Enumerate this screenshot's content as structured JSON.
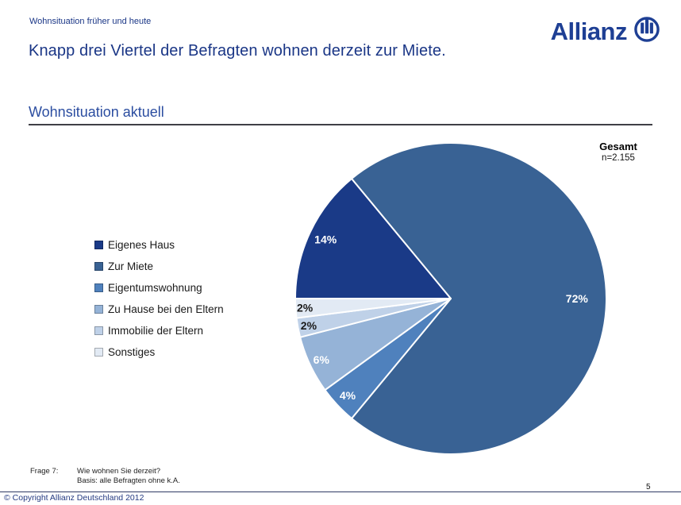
{
  "page": {
    "eyebrow": "Wohnsituation früher und heute",
    "title": "Knapp drei Viertel der Befragten wohnen derzeit zur Miete.",
    "section_title": "Wohnsituation aktuell",
    "copyright": "© Copyright Allianz Deutschland 2012",
    "page_number": "5"
  },
  "logo": {
    "brand": "Allianz"
  },
  "chart_header": {
    "title": "Gesamt",
    "n": "n=2.155"
  },
  "footnote": {
    "label": "Frage 7:",
    "line1": "Wie wohnen Sie derzeit?",
    "line2": "Basis: alle Befragten ohne k.A."
  },
  "chart_data": {
    "type": "pie",
    "title": "Wohnsituation aktuell",
    "group_label": "Gesamt",
    "n": 2155,
    "start_angle_cw_from_top": 270,
    "direction": "clockwise",
    "legend_position": "left",
    "slices": [
      {
        "label": "Eigenes Haus",
        "value": 14,
        "display": "14%",
        "color": "#1A3A87",
        "label_color": "#ffffff",
        "label_r": 0.89
      },
      {
        "label": "Zur Miete",
        "value": 72,
        "display": "72%",
        "color": "#396294",
        "label_color": "#ffffff",
        "label_r": 0.81
      },
      {
        "label": "Eigentumswohnung",
        "value": 4,
        "display": "4%",
        "color": "#4F81BD",
        "label_color": "#ffffff",
        "label_r": 0.91
      },
      {
        "label": "Zu Hause bei den Eltern",
        "value": 6,
        "display": "6%",
        "color": "#95B3D7",
        "label_color": "#ffffff",
        "label_r": 0.92
      },
      {
        "label": "Immobilie der Eltern",
        "value": 2,
        "display": "2%",
        "color": "#BFD1E8",
        "label_color": "#1a1a1a",
        "label_r": 0.93
      },
      {
        "label": "Sonstiges",
        "value": 2,
        "display": "2%",
        "color": "#E2EAF4",
        "label_color": "#1a1a1a",
        "label_r": 0.94
      }
    ]
  }
}
